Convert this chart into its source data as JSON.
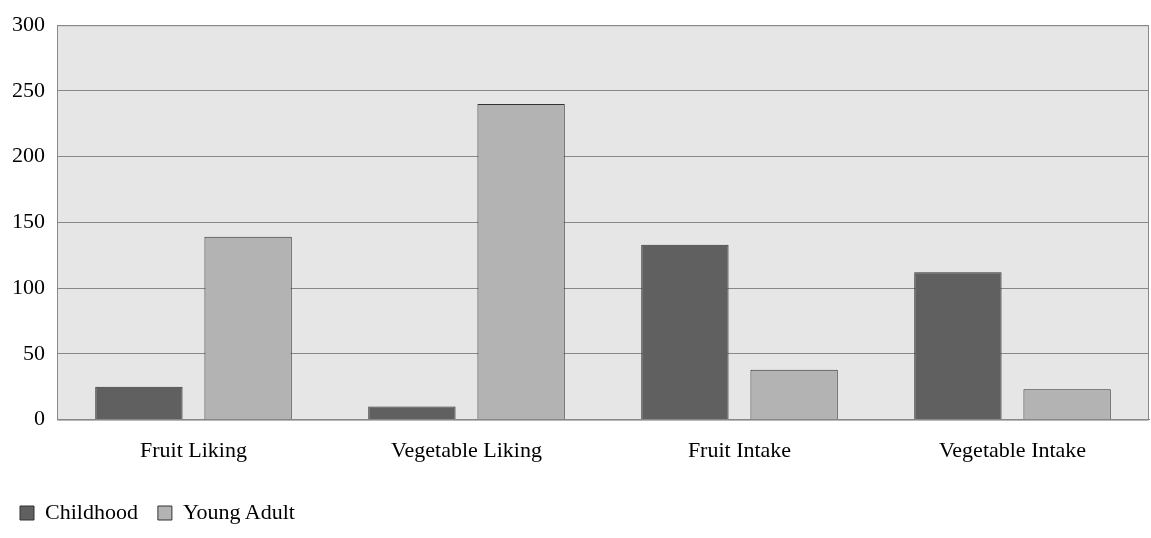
{
  "chart_data": {
    "type": "bar",
    "categories": [
      "Fruit Liking",
      "Vegetable Liking",
      "Fruit Intake",
      "Vegetable Intake"
    ],
    "series": [
      {
        "name": "Childhood",
        "color": "#606060",
        "values": [
          25,
          10,
          133,
          112
        ]
      },
      {
        "name": "Young Adult",
        "color": "#b3b3b3",
        "values": [
          139,
          240,
          38,
          23
        ]
      }
    ],
    "ylim": [
      0,
      300
    ],
    "yticks": [
      0,
      50,
      100,
      150,
      200,
      250,
      300
    ],
    "grid": "y",
    "legend": "bottom left"
  }
}
